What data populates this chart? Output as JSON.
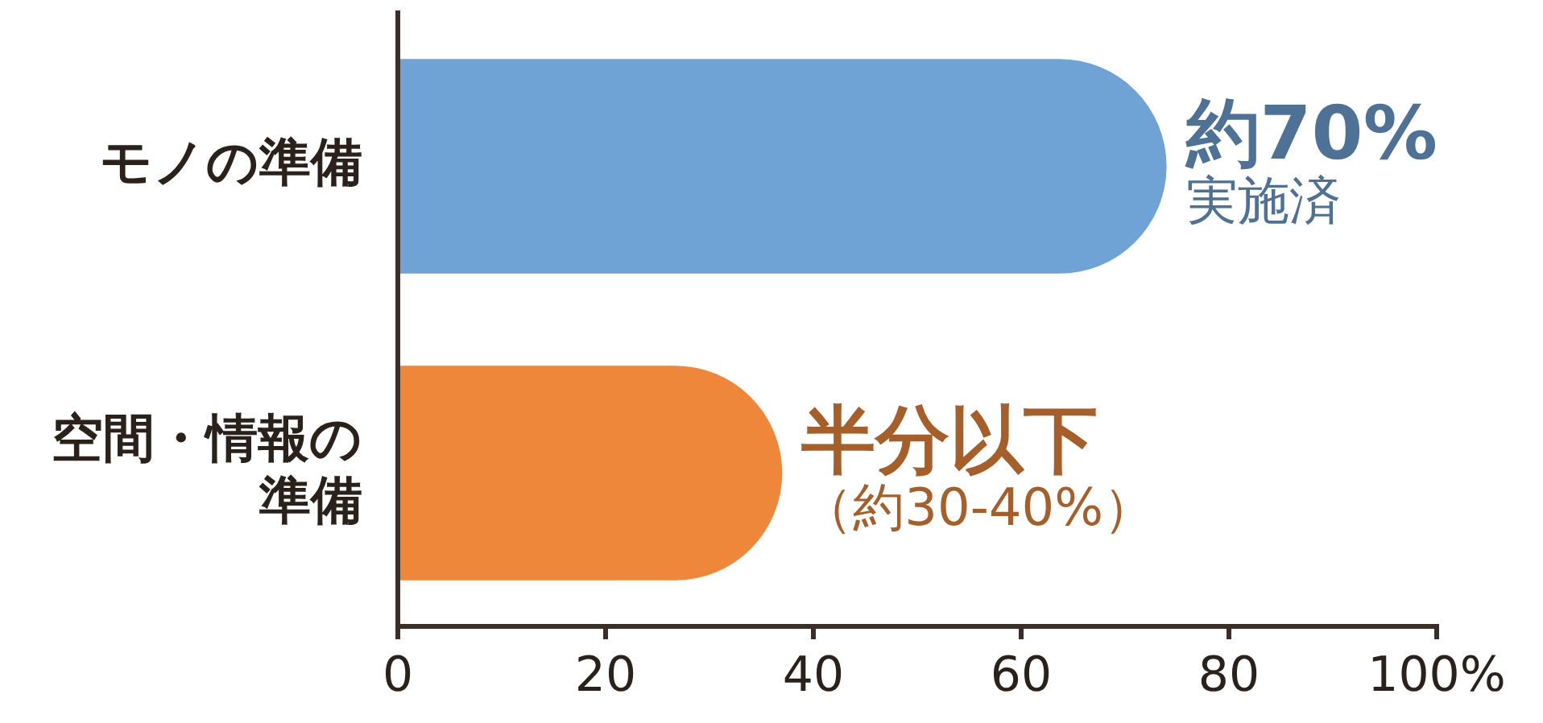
{
  "chart_data": {
    "type": "bar",
    "orientation": "horizontal",
    "categories": [
      "モノの準備",
      "空間・情報の準備"
    ],
    "values": [
      74,
      37
    ],
    "colors": [
      "#6fa3d6",
      "#ee873a"
    ],
    "xlim": [
      0,
      100
    ],
    "xticks": [
      0,
      20,
      40,
      60,
      {
        "value": 100,
        "label": "100%"
      },
      80
    ],
    "grid": false,
    "legend": false,
    "annotations": [
      {
        "text": "約70%",
        "x": 74,
        "y": "モノの準備"
      },
      "実施済",
      {
        "text": "半分以下",
        "x": 37,
        "y": "空間・情報の準備"
      },
      "（約30-40%）"
    ]
  }
}
